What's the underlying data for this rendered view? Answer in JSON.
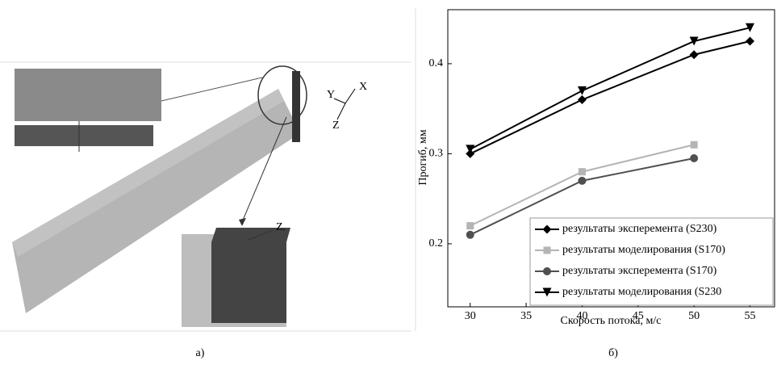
{
  "image_labels": {
    "axis_x": "X",
    "axis_y": "Y",
    "axis_z": "Z",
    "plate_label": "Z."
  },
  "captions": {
    "left": "а)",
    "right": "б)"
  },
  "chart_data": {
    "type": "line",
    "x_label": "Скорость потока, м/с",
    "y_label": "Прогиб, мм",
    "x": [
      30,
      40,
      50,
      55
    ],
    "series": [
      {
        "name": "результаты эксперемента (S230)",
        "color": "#000000",
        "marker": "diamond",
        "values": [
          0.3,
          0.36,
          0.41,
          0.425
        ]
      },
      {
        "name": "результаты моделирования (S170)",
        "color": "#b4b4b4",
        "marker": "square",
        "values": [
          0.22,
          0.28,
          0.31,
          null
        ]
      },
      {
        "name": "результаты эксперемента (S170)",
        "color": "#505050",
        "marker": "circle",
        "values": [
          0.21,
          0.27,
          0.295,
          null
        ]
      },
      {
        "name": "результаты моделирования (S230",
        "color": "#000000",
        "marker": "triangle-down",
        "values": [
          0.305,
          0.37,
          0.425,
          0.44
        ]
      }
    ],
    "xlim": [
      28,
      57.2
    ],
    "xticks": [
      30,
      35,
      40,
      45,
      50,
      55
    ],
    "ylim": [
      0.13,
      0.46
    ],
    "yticks": [
      0.2,
      0.3,
      0.4
    ],
    "legend": "lower right"
  }
}
